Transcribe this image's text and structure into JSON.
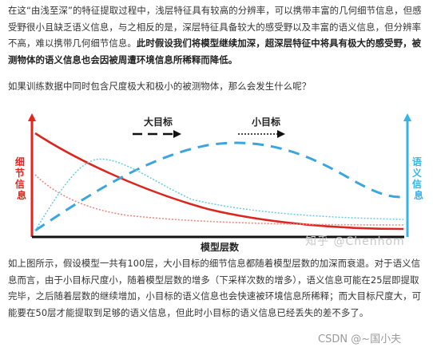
{
  "paragraph1": {
    "normal": "在这“由浅至深”的特征提取过程中，浅层特征具有较高的分辨率，可以携带丰富的几何细节信息，但感受野很小且缺乏语义信息，与之相反的是，深层特征具备较大的感受野以及丰富的语义信息，但分辨率不高，难以携带几何细节信息。",
    "bold": "此时假设我们将模型继续加深，超深层特征中将具有极大的感受野，被测物体的语义信息也会因被周遭环境信息所稀释而降低。"
  },
  "paragraph2": "如果训练数据中同时包含尺度极大和极小的被测物体，那么会发生什么呢？",
  "figure": {
    "left_axis_label": "细节信息",
    "right_axis_label": "语义信息",
    "x_axis_label": "模型层数",
    "legend_large": "大目标",
    "legend_small": "小目标",
    "colors": {
      "red_axis": "#e8231e",
      "blue_axis": "#35b5e5",
      "dashed_large": "#3aa6e0",
      "dashed_small": "#67cde3",
      "solid_large": "#d9271f",
      "solid_small": "#f08a80"
    }
  },
  "paragraph3": "如上图所示，假设模型一共有100层，大小目标的细节信息都随着模型层数的加深而衰退。对于语义信息而言，由于小目标尺度小，随着模型层数的增多（下采样次数的增多），语义信息可能在25层即提取完毕，之后随着层数的继续增加，小目标的语义信息也会快速被环境信息所稀释；而大目标尺度大，可能要在50层才能提取到足够的语义信息，但此时小目标的语义信息已经丢失的差不多了。",
  "watermarks": {
    "zhihu": "知乎 @Chenhom",
    "csdn": "CSDN @~国小夫"
  }
}
